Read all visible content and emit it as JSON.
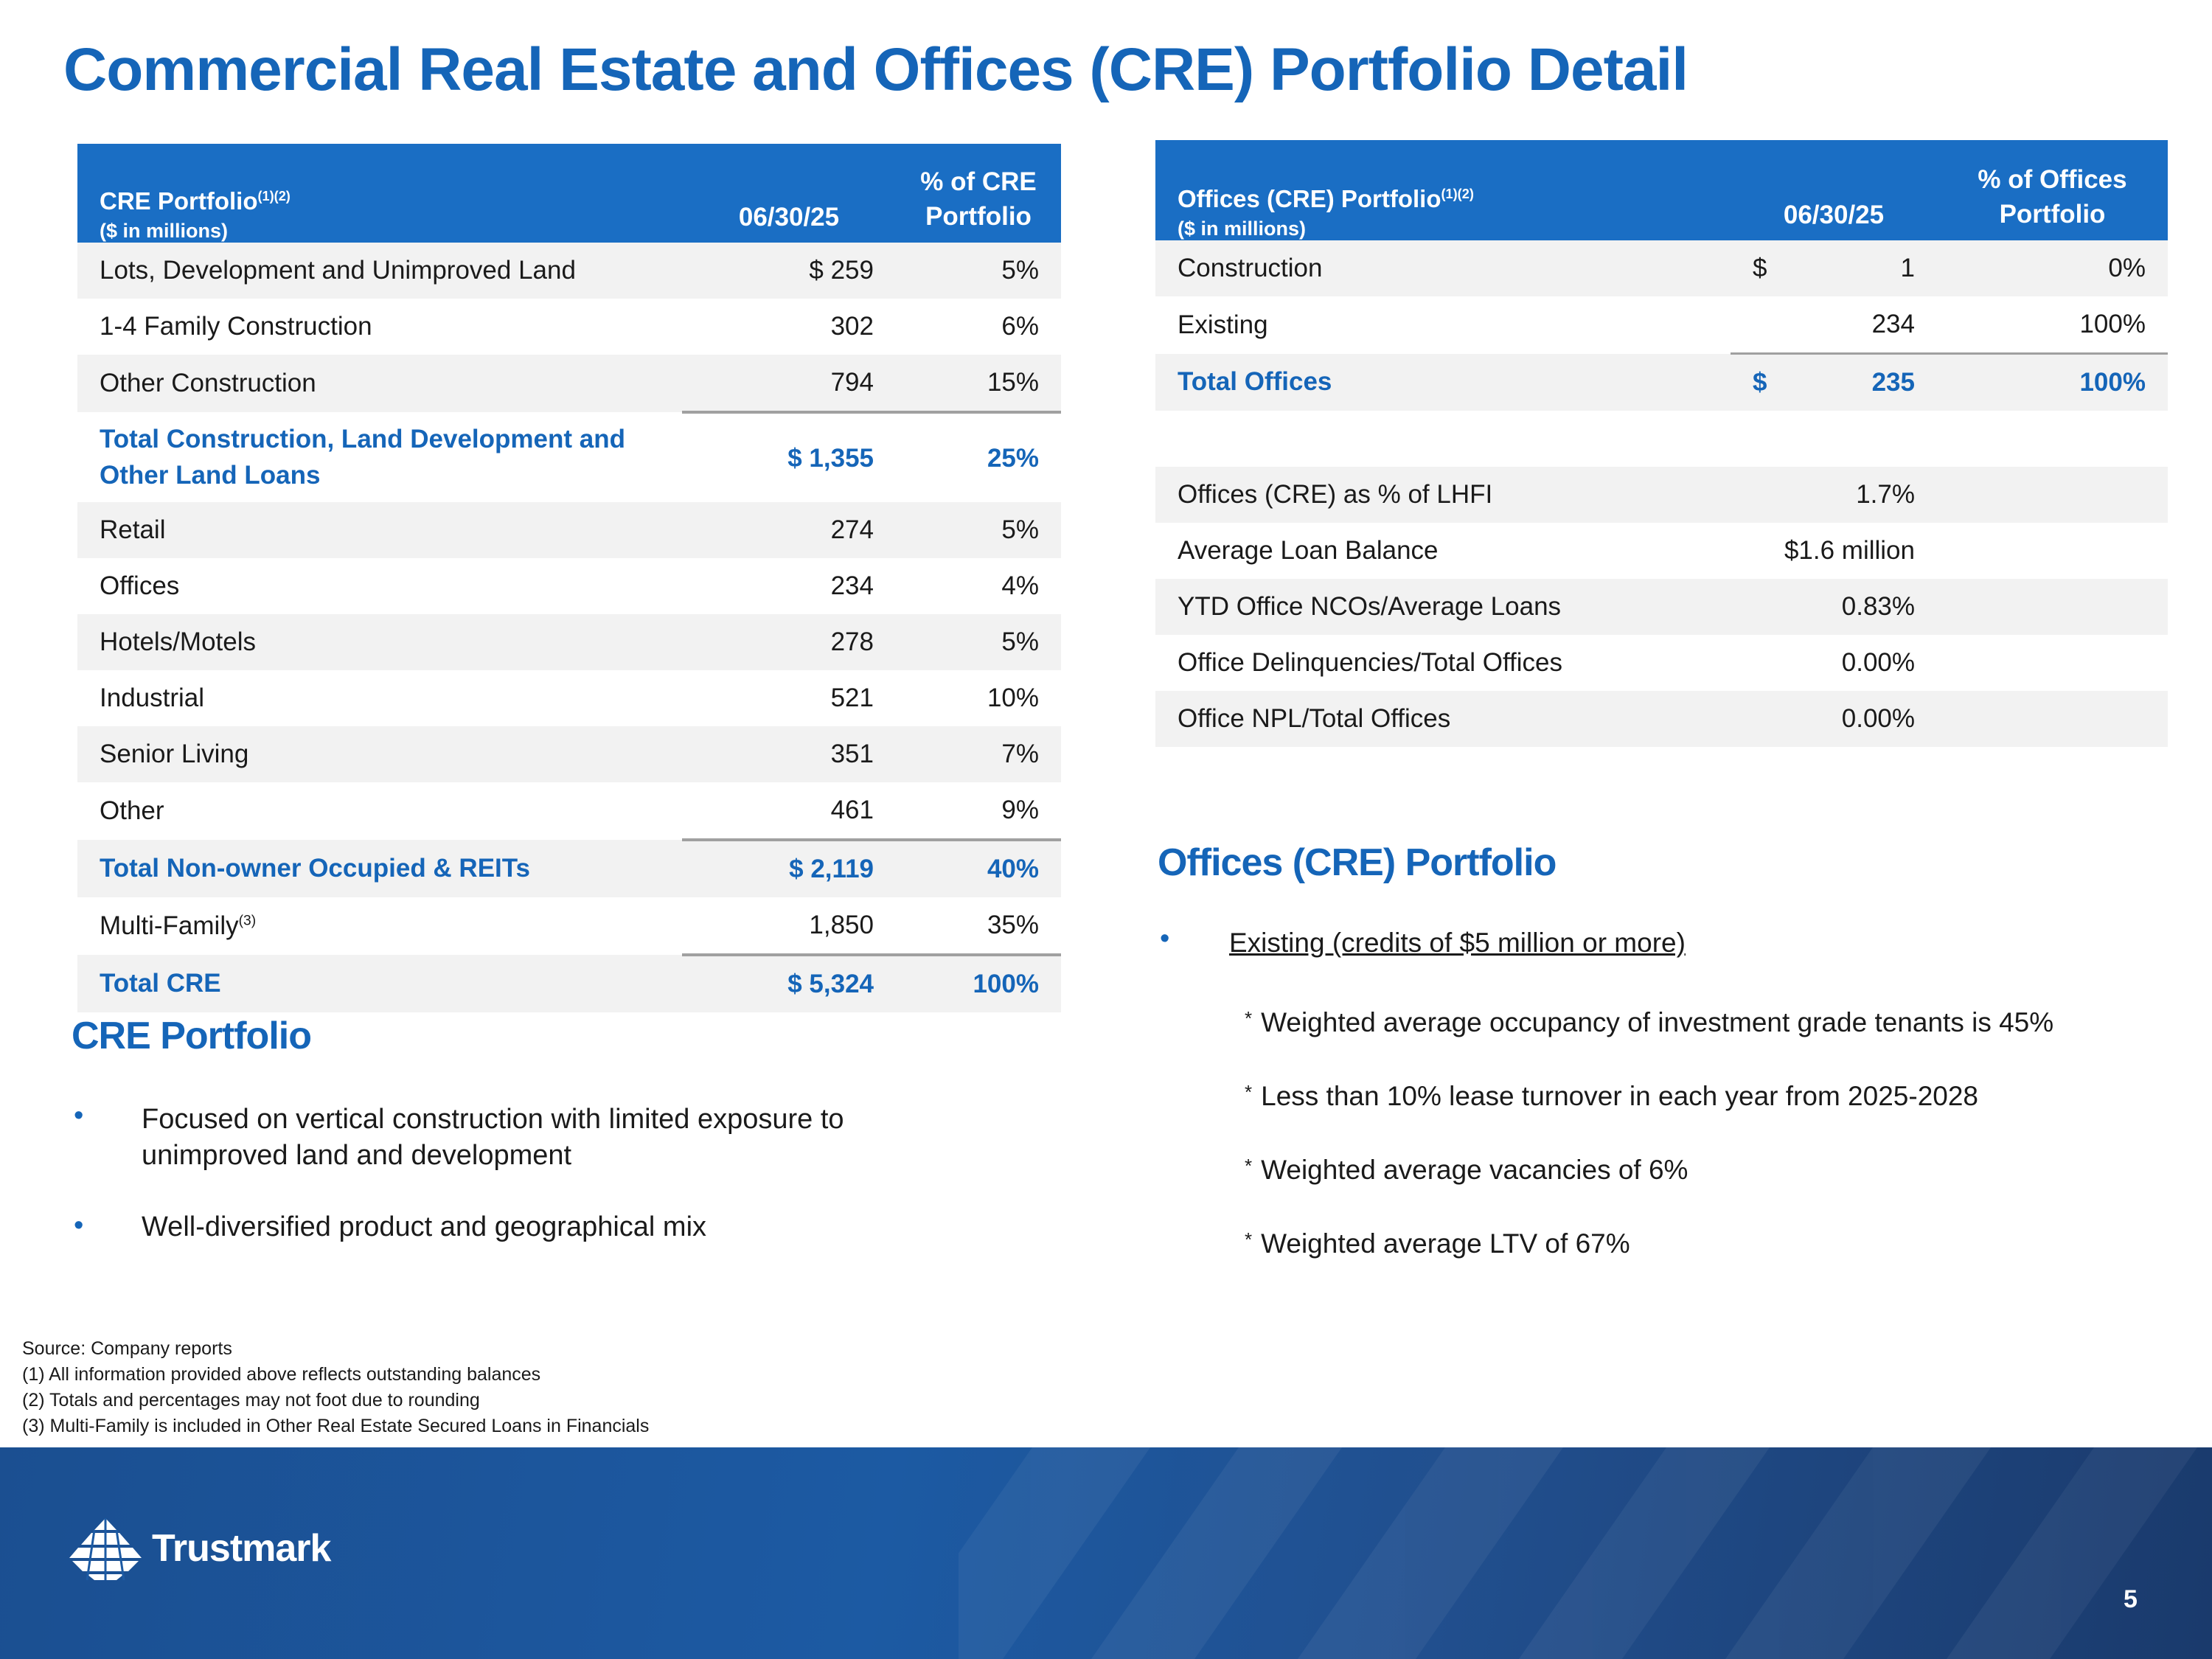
{
  "title": "Commercial Real Estate and Offices (CRE) Portfolio Detail",
  "cre_table": {
    "header": {
      "label": "CRE Portfolio",
      "label_sup": "(1)(2)",
      "units": "($ in millions)",
      "date": "06/30/25",
      "pct_line1": "% of CRE",
      "pct_line2": "Portfolio"
    },
    "rows": [
      {
        "label": "Lots, Development and Unimproved Land",
        "value": "$ 259",
        "pct": "5%"
      },
      {
        "label": "1-4 Family Construction",
        "value": "302",
        "pct": "6%"
      },
      {
        "label": "Other Construction",
        "value": "794",
        "pct": "15%"
      },
      {
        "label_line1": "Total Construction, Land Development and",
        "label_line2": "Other Land Loans",
        "value": "$ 1,355",
        "pct": "25%"
      },
      {
        "label": "Retail",
        "value": "274",
        "pct": "5%"
      },
      {
        "label": "Offices",
        "value": "234",
        "pct": "4%"
      },
      {
        "label": "Hotels/Motels",
        "value": "278",
        "pct": "5%"
      },
      {
        "label": "Industrial",
        "value": "521",
        "pct": "10%"
      },
      {
        "label": "Senior Living",
        "value": "351",
        "pct": "7%"
      },
      {
        "label": "Other",
        "value": "461",
        "pct": "9%"
      },
      {
        "label": "Total Non-owner Occupied & REITs",
        "value": "$ 2,119",
        "pct": "40%"
      },
      {
        "label": "Multi-Family",
        "label_sup": "(3)",
        "value": "1,850",
        "pct": "35%"
      },
      {
        "label": "Total CRE",
        "value": "$ 5,324",
        "pct": "100%"
      }
    ]
  },
  "offices_table": {
    "header": {
      "label": "Offices (CRE) Portfolio",
      "label_sup": "(1)(2)",
      "units": "($ in millions)",
      "date": "06/30/25",
      "pct_line1": "% of Offices",
      "pct_line2": "Portfolio"
    },
    "rows": [
      {
        "label": "Construction",
        "currency": "$",
        "value": "1",
        "pct": "0%"
      },
      {
        "label": "Existing",
        "currency": "",
        "value": "234",
        "pct": "100%"
      },
      {
        "label": "Total Offices",
        "currency": "$",
        "value": "235",
        "pct": "100%"
      }
    ],
    "metrics": [
      {
        "label": "Offices (CRE) as % of LHFI",
        "value": "1.7%"
      },
      {
        "label": "Average Loan Balance",
        "value": "$1.6 million"
      },
      {
        "label": "YTD Office NCOs/Average Loans",
        "value": "0.83%"
      },
      {
        "label": "Office Delinquencies/Total Offices",
        "value": "0.00%"
      },
      {
        "label": "Office NPL/Total Offices",
        "value": "0.00%"
      }
    ]
  },
  "cre_section": {
    "title": "CRE Portfolio",
    "bullet1_line1": "Focused on vertical construction with limited exposure to",
    "bullet1_line2": "unimproved land and development",
    "bullet2": "Well-diversified product and geographical mix",
    "bullet_char": "•"
  },
  "offices_section": {
    "title": "Offices (CRE) Portfolio",
    "bullet_char": "•",
    "bullet": "Existing (credits of $5 million or more)",
    "sub_mark": "*",
    "sub_items": [
      "Weighted average occupancy of investment grade tenants is 45%",
      "Less than 10% lease turnover in each year from 2025-2028",
      "Weighted average vacancies of 6%",
      "Weighted average LTV of 67%"
    ]
  },
  "footnotes": [
    "Source: Company reports",
    "(1) All information provided above reflects outstanding balances",
    "(2) Totals and percentages may not foot due to rounding",
    "(3) Multi-Family is included in Other Real Estate Secured  Loans in Financials"
  ],
  "logo": {
    "name": "Trustmark",
    "icon": "trustmark-logo-icon"
  },
  "page_number": "5",
  "colors": {
    "accent": "#1565b8",
    "header_bg": "#1a6ec4",
    "footer_bg": "#1c5aa3",
    "row_alt": "#f2f2f2"
  }
}
